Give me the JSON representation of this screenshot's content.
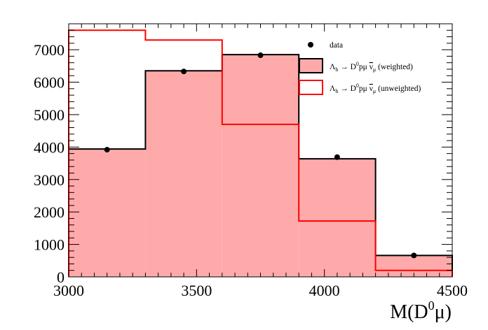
{
  "chart_data": {
    "type": "bar",
    "bin_edges": [
      3000,
      3300,
      3600,
      3900,
      4200,
      4500
    ],
    "series": [
      {
        "name": "Λb → D0pμ ν̄μ (weighted)",
        "values": [
          3940,
          6350,
          6850,
          3640,
          660
        ]
      },
      {
        "name": "Λb → D0pμ ν̄μ (unweighted)",
        "values": [
          7600,
          7300,
          4700,
          1720,
          200
        ]
      }
    ],
    "data_points": {
      "name": "data",
      "x": [
        3150,
        3450,
        3750,
        4050,
        4350
      ],
      "y": [
        3920,
        6330,
        6830,
        3690,
        660
      ]
    },
    "xlabel": "M(D0μ)",
    "ylabel": "",
    "xlim": [
      3000,
      4500
    ],
    "ylim": [
      0,
      7800
    ],
    "xticks": [
      3000,
      3500,
      4000,
      4500
    ],
    "yticks": [
      0,
      1000,
      2000,
      3000,
      4000,
      5000,
      6000,
      7000
    ],
    "grid": false,
    "legend_position": "top-right",
    "colors": {
      "weighted_fill": "#ffaaaa",
      "weighted_line": "#000000",
      "unweighted_line": "#ff0000",
      "data_marker": "#000000"
    }
  },
  "legend": {
    "data": "data",
    "weighted": {
      "pre": "Λ",
      "sub1": "b",
      "arrow": " → D",
      "sup": "0",
      "mid": "pμ ",
      "nu": "ν",
      "sub2": "μ",
      "tag": " (weighted)"
    },
    "unweighted": {
      "pre": "Λ",
      "sub1": "b",
      "arrow": " → D",
      "sup": "0",
      "mid": "pμ ",
      "nu": "ν",
      "sub2": "μ",
      "tag": " (unweighted)"
    }
  },
  "axis_title": {
    "pre": "M(D",
    "sup": "0",
    "post": "μ)"
  }
}
